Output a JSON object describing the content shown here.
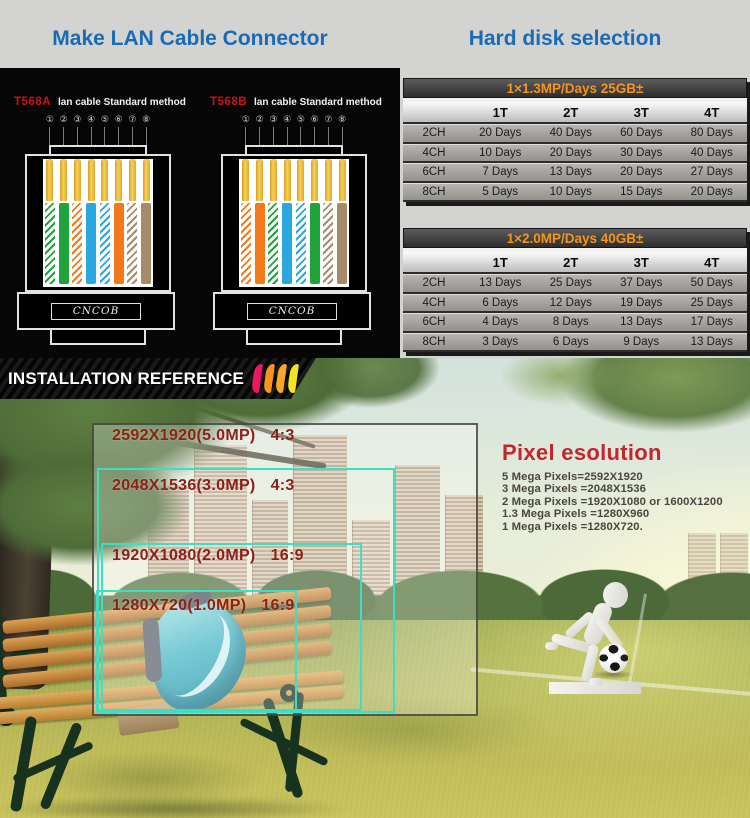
{
  "header": {
    "left_title": "Make LAN Cable Connector",
    "right_title": "Hard disk selection"
  },
  "lan_section": {
    "connectors": [
      {
        "label": "T568A",
        "subtitle": "lan cable Standard method",
        "pins": [
          "①",
          "②",
          "③",
          "④",
          "⑤",
          "⑥",
          "⑦",
          "⑧"
        ],
        "wires": [
          "green-stripe",
          "green",
          "orange-stripe",
          "blue",
          "blue-stripe",
          "orange",
          "brown-stripe",
          "brown"
        ],
        "brand": "CNCOB"
      },
      {
        "label": "T568B",
        "subtitle": "lan cable Standard method",
        "pins": [
          "①",
          "②",
          "③",
          "④",
          "⑤",
          "⑥",
          "⑦",
          "⑧"
        ],
        "wires": [
          "orange-stripe",
          "orange",
          "green-stripe",
          "blue",
          "blue-stripe",
          "green",
          "brown-stripe",
          "brown"
        ],
        "brand": "CNCOB"
      }
    ],
    "wire_palette": {
      "green": "#1fa33b",
      "orange": "#f3791b",
      "blue": "#2aa7df",
      "brown": "#a88a68"
    }
  },
  "hard_disk_tables": [
    {
      "title": "1×1.3MP/Days 25GB±",
      "columns": [
        "",
        "1T",
        "2T",
        "3T",
        "4T"
      ],
      "rows": [
        [
          "2CH",
          "20 Days",
          "40 Days",
          "60 Days",
          "80 Days"
        ],
        [
          "4CH",
          "10 Days",
          "20 Days",
          "30 Days",
          "40 Days"
        ],
        [
          "6CH",
          "7 Days",
          "13 Days",
          "20 Days",
          "27 Days"
        ],
        [
          "8CH",
          "5 Days",
          "10 Days",
          "15 Days",
          "20 Days"
        ]
      ]
    },
    {
      "title": "1×2.0MP/Days 40GB±",
      "columns": [
        "",
        "1T",
        "2T",
        "3T",
        "4T"
      ],
      "rows": [
        [
          "2CH",
          "13 Days",
          "25 Days",
          "37 Days",
          "50 Days"
        ],
        [
          "4CH",
          "6 Days",
          "12 Days",
          "19 Days",
          "25 Days"
        ],
        [
          "6CH",
          "4 Days",
          "8 Days",
          "13 Days",
          "17 Days"
        ],
        [
          "8CH",
          "3 Days",
          "6 Days",
          "9 Days",
          "13 Days"
        ]
      ]
    }
  ],
  "banner": {
    "text": "INSTALLATION REFERENCE",
    "stripe_colors": [
      "#ec1566",
      "#f7941d",
      "#f9a825",
      "#f2e422"
    ]
  },
  "photo": {
    "resolution_overlays": [
      {
        "label": "2592X1920(5.0MP)",
        "ratio": "4:3"
      },
      {
        "label": "2048X1536(3.0MP)",
        "ratio": "4:3"
      },
      {
        "label": "1920X1080(2.0MP)",
        "ratio": "16:9"
      },
      {
        "label": "1280X720(1.0MP)",
        "ratio": "16:9"
      }
    ],
    "pixel_resolution": {
      "title": "Pixel esolution",
      "lines": [
        "5 Mega Pixels=2592X1920",
        "3 Mega Pixels =2048X1536",
        "2 Mega Pixels =1920X1080 or 1600X1200",
        "1.3 Mega Pixels =1280X960",
        "1 Mega Pixels =1280X720."
      ]
    }
  },
  "colors": {
    "heading_blue": "#1a6ab5",
    "table_title_orange": "#f7941d",
    "connector_label_red": "#d01212",
    "overlay_cyan": "#3bdfc2",
    "overlay_label_red": "#8d2016",
    "pixel_title_red": "#c1272d"
  }
}
